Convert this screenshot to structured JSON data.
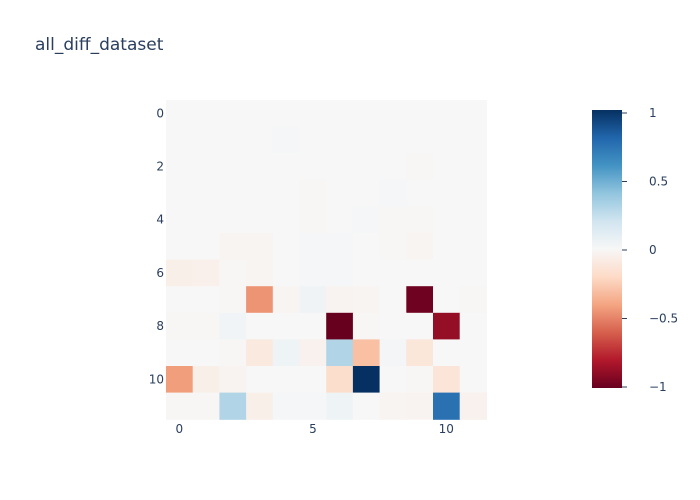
{
  "chart_data": {
    "type": "heatmap",
    "title": "all_diff_dataset",
    "xlabel": "",
    "ylabel": "",
    "x_ticks": [
      "0",
      "5",
      "10"
    ],
    "y_ticks": [
      "0",
      "2",
      "4",
      "6",
      "8",
      "10"
    ],
    "zlim": [
      -1,
      1
    ],
    "colorbar_ticks": [
      "1",
      "0.5",
      "0",
      "−0.5",
      "−1"
    ],
    "colorscale": "RdBu",
    "z": [
      [
        0,
        0,
        0,
        0,
        0,
        0,
        0,
        0,
        0,
        0,
        0,
        0
      ],
      [
        0,
        0,
        0,
        0,
        0.01,
        0,
        0,
        0,
        0,
        0,
        0,
        0
      ],
      [
        0,
        0,
        0,
        0,
        0,
        0,
        0,
        0,
        0,
        -0.01,
        0,
        0
      ],
      [
        0,
        0,
        0,
        0,
        0,
        -0.01,
        0,
        0,
        0.01,
        0,
        0,
        0
      ],
      [
        0,
        0,
        0,
        0,
        0,
        -0.01,
        0,
        0.01,
        -0.01,
        -0.01,
        0,
        0
      ],
      [
        0,
        0,
        -0.02,
        -0.02,
        0,
        0.01,
        0.01,
        0,
        -0.01,
        -0.02,
        0,
        0
      ],
      [
        -0.06,
        -0.05,
        -0.01,
        -0.02,
        0,
        0.01,
        0.01,
        0,
        0,
        0,
        0,
        0
      ],
      [
        0,
        0,
        -0.01,
        -0.45,
        -0.02,
        0.04,
        -0.03,
        -0.02,
        0,
        -0.98,
        0,
        -0.01
      ],
      [
        -0.01,
        -0.01,
        0.03,
        0,
        0,
        0,
        -1,
        -0.01,
        0,
        0,
        -0.88,
        0
      ],
      [
        0,
        0,
        -0.01,
        -0.1,
        0.05,
        -0.04,
        0.3,
        -0.3,
        0.02,
        -0.12,
        0,
        0
      ],
      [
        -0.42,
        -0.06,
        -0.03,
        0,
        0,
        0,
        -0.18,
        1,
        0,
        -0.01,
        -0.13,
        0
      ],
      [
        -0.01,
        -0.01,
        0.3,
        -0.06,
        0.01,
        0.01,
        0.05,
        0,
        -0.02,
        -0.03,
        0.75,
        -0.04
      ]
    ]
  }
}
